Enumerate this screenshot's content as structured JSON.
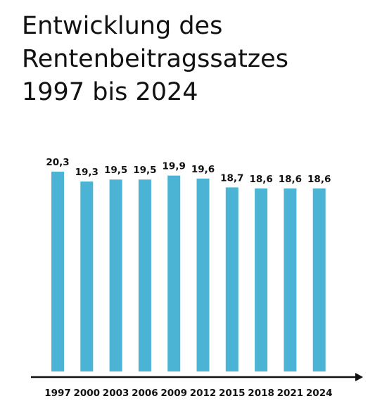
{
  "title_lines": [
    "Entwicklung des",
    "Rentenbeitragssatzes",
    "1997 bis 2024"
  ],
  "colors": {
    "bar": "#4bb3d4",
    "axis": "#111111"
  },
  "chart_data": {
    "type": "bar",
    "title": "Entwicklung des Rentenbeitragssatzes 1997 bis 2024",
    "categories": [
      "1997",
      "2000",
      "2003",
      "2006",
      "2009",
      "2012",
      "2015",
      "2018",
      "2021",
      "2024"
    ],
    "values": [
      20.3,
      19.3,
      19.5,
      19.5,
      19.9,
      19.6,
      18.7,
      18.6,
      18.6,
      18.6
    ],
    "value_labels": [
      "20,3",
      "19,3",
      "19,5",
      "19,5",
      "19,9",
      "19,6",
      "18,7",
      "18,6",
      "18,6",
      "18,6"
    ],
    "ylim": [
      0,
      20.3
    ],
    "grid": false,
    "legend": "none"
  }
}
